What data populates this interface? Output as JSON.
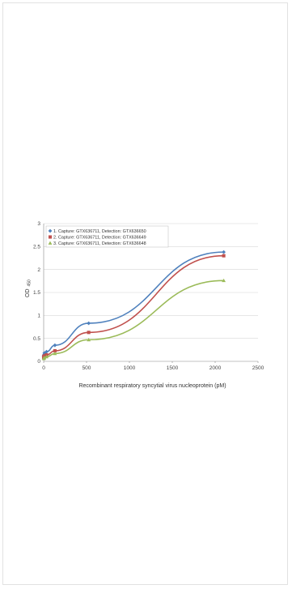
{
  "chart_data": {
    "type": "line",
    "xlabel": "Recombinant respiratory syncytial virus nucleoprotein (pM)",
    "ylabel": "OD",
    "ylabel_sub": "450",
    "xlim": [
      0,
      2500
    ],
    "ylim": [
      0,
      3
    ],
    "xticks": [
      0,
      500,
      1000,
      1500,
      2000,
      2500
    ],
    "yticks": [
      0,
      0.5,
      1,
      1.5,
      2,
      2.5,
      3
    ],
    "grid": true,
    "legend_position": "top-left",
    "series": [
      {
        "name": "1. Capture: GTX636711, Detection: GTX636650",
        "color": "#4f81bd",
        "marker": "diamond",
        "x": [
          0,
          2.5,
          8,
          33,
          131,
          525,
          2100
        ],
        "y": [
          0.12,
          0.14,
          0.18,
          0.21,
          0.35,
          0.83,
          2.38
        ]
      },
      {
        "name": "2. Capture: GTX636711, Detection: GTX636649",
        "color": "#c0504d",
        "marker": "square",
        "x": [
          0,
          2.5,
          8,
          33,
          131,
          525,
          2100
        ],
        "y": [
          0.09,
          0.1,
          0.12,
          0.14,
          0.23,
          0.63,
          2.3
        ]
      },
      {
        "name": "3. Capture: GTX636711, Detection: GTX636648",
        "color": "#9bbb59",
        "marker": "triangle",
        "x": [
          0,
          2.5,
          8,
          33,
          131,
          525,
          2100
        ],
        "y": [
          0.06,
          0.07,
          0.08,
          0.1,
          0.17,
          0.47,
          1.76
        ]
      }
    ]
  }
}
